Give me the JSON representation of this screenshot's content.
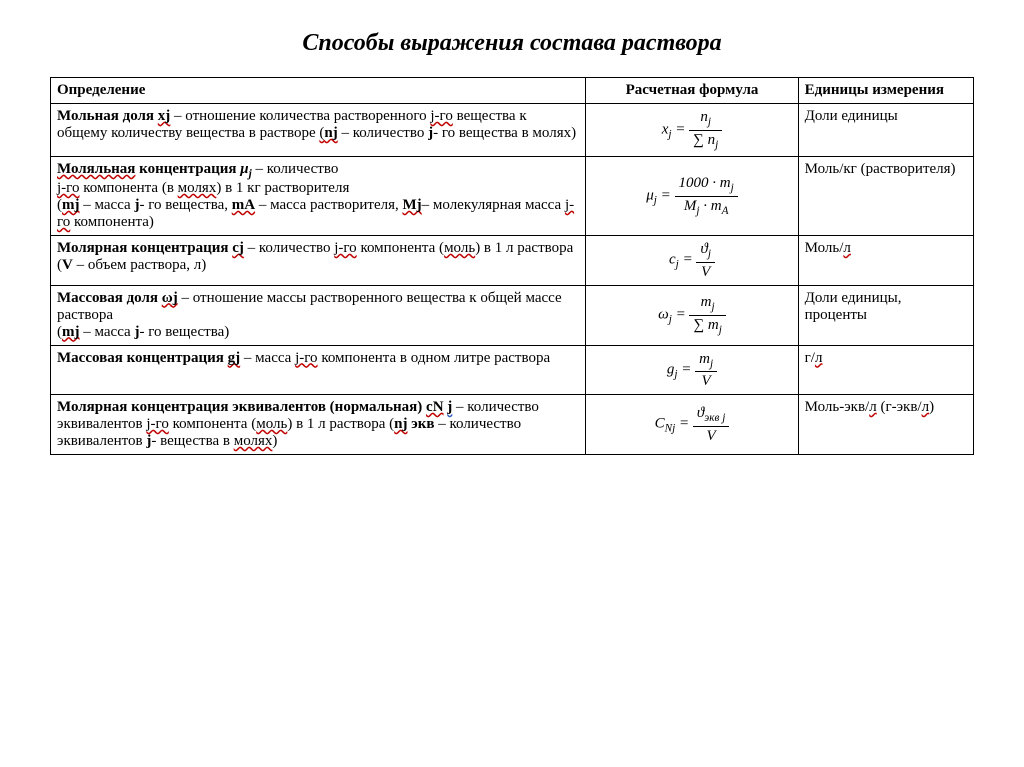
{
  "title": "Способы выражения состава раствора",
  "headers": {
    "definition": "Определение",
    "formula": "Расчетная формула",
    "units": "Единицы измерения"
  },
  "rows": [
    {
      "definition_html": "<span class='bold'>Мольная доля <span class='wavy-red'>xj</span></span> – отношение количества растворенного <span class='wavy-red'>j-го</span> вещества к общему количеству вещества в растворе <span class='wavy-red'>(<span class='bold'>nj</span></span> – количество <span class='bold'>j</span>- го вещества в молях)",
      "formula_html": "x<sub>j</sub> = <span class='frac'><span class='num'>n<sub>j</sub></span><span class='den'>&sum; n<sub>j</sub></span></span>",
      "units_html": "Доли единицы"
    },
    {
      "definition_html": "<span class='bold'><span class='wavy-red'>Моляльная</span> концентрация <i>&mu;<sub>j</sub></i></span> – количество<br><span class='wavy-red'>j-го</span> компонента (в <span class='wavy-red'>молях</span>) в 1 кг растворителя<br>(<span class='bold wavy-red'>mj</span> – масса <span class='bold'>j</span>- го вещества, <span class='bold wavy-red'>mA</span> – масса растворителя, <span class='bold wavy-red'>Mj</span>– молекулярная масса <span class='wavy-red'>j-го</span> компонента)",
      "formula_html": "&mu;<sub>j</sub> = <span class='frac'><span class='num'>1000 &middot; m<sub>j</sub></span><span class='den'>M<sub>j</sub> &middot; m<sub>A</sub></span></span>",
      "units_html": "Моль/кг (растворителя)"
    },
    {
      "definition_html": "<span class='bold'>Молярная концентрация <span class='wavy-red'>cj</span></span> – количество <span class='wavy-red'>j-го</span> компонента (<span class='wavy-red'>моль</span>) в 1 л раствора<br>(<span class='bold'>V</span> – объем раствора, л)",
      "formula_html": "c<sub>j</sub> = <span class='frac'><span class='num'>&#977;<sub>j</sub></span><span class='den'>V</span></span>",
      "units_html": "Моль/<span class='wavy-red'>л</span>"
    },
    {
      "definition_html": "<span class='bold'>Массовая доля <span class='wavy-red'>&omega;j</span></span> – отношение массы растворенного вещества к общей массе раствора<br>(<span class='bold wavy-red'>mj</span> – масса <span class='bold'>j</span>- го вещества)",
      "formula_html": "&omega;<sub>j</sub> = <span class='frac'><span class='num'>m<sub>j</sub></span><span class='den'>&sum; m<sub>j</sub></span></span>",
      "units_html": "Доли единицы, проценты"
    },
    {
      "definition_html": "<span class='bold'>Массовая концентрация <span class='wavy-red'>gj</span></span> – масса <span class='wavy-red'>j-го</span> компонента в одном литре раствора",
      "formula_html": "g<sub>j</sub> = <span class='frac'><span class='num'>m<sub>j</sub></span><span class='den'>V</span></span>",
      "units_html": "г/<span class='wavy-red'>л</span>"
    },
    {
      "definition_html": "<span class='bold'>Молярная концентрация эквивалентов (нормальная) <span class='wavy-red'>cN</span> <span class='wavy-blue'>j</span></span> – количество эквивалентов <span class='wavy-red'>j-го</span> компонента (<span class='wavy-red'>моль</span>) в 1 л раствора (<span class='bold wavy-red'>nj</span> <span class='bold'>экв</span> – количество эквивалентов <span class='bold'>j</span>- вещества в <span class='wavy-red'>молях</span>)",
      "formula_html": "C<sub>Nj</sub> = <span class='frac'><span class='num'>&#977;<sub>экв j</sub></span><span class='den'>V</span></span>",
      "units_html": "Моль-экв/<span class='wavy-red'>л</span> (г-экв/<span class='wavy-red'>л</span>)"
    }
  ]
}
